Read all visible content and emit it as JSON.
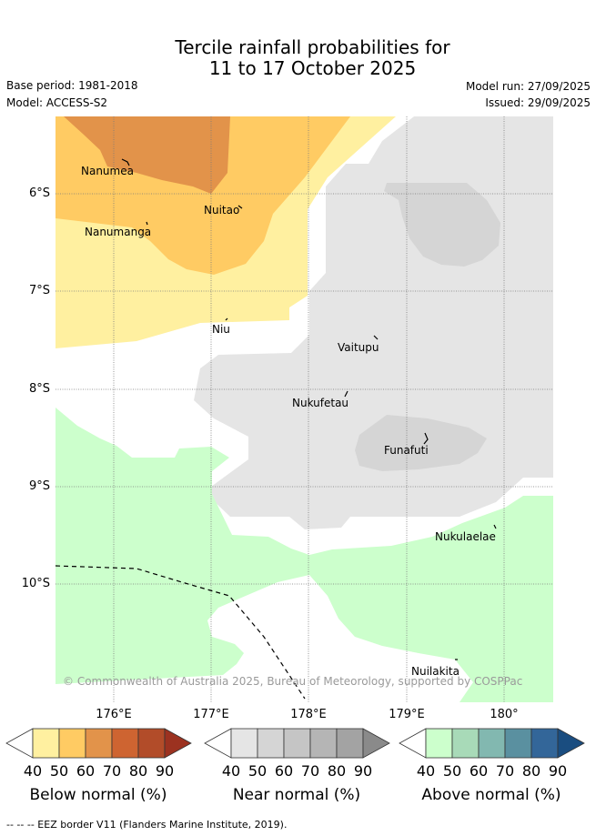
{
  "title": {
    "line1": "Tercile rainfall probabilities for",
    "line2": "11 to 17 October 2025"
  },
  "meta": {
    "base_period": "Base period: 1981-2018",
    "model": "Model: ACCESS-S2",
    "model_run": "Model run: 27/09/2025",
    "issued": "Issued: 29/09/2025"
  },
  "map": {
    "latitude_labels": [
      "6°S",
      "7°S",
      "8°S",
      "9°S",
      "10°S"
    ],
    "longitude_labels": [
      "176°E",
      "177°E",
      "178°E",
      "179°E",
      "180°"
    ],
    "islands": [
      "Nanumea",
      "Nuitao",
      "Nanumanga",
      "Niu",
      "Vaitupu",
      "Nukufetau",
      "Funafuti",
      "Nukulaelae",
      "Nuilakita"
    ],
    "copyright": "© Commonwealth of Australia 2025, Bureau of Meteorology, supported by COSPPac",
    "colors": {
      "below": [
        "#fff0a0",
        "#ffcb63",
        "#e2934a",
        "#ce6431",
        "#b24c29",
        "#9c3220"
      ],
      "near": [
        "#e5e5e5",
        "#d5d5d5",
        "#c5c5c5",
        "#b5b5b5",
        "#a3a3a3",
        "#8a8a8a"
      ],
      "above": [
        "#ccffcc",
        "#a8dab8",
        "#82b8b0",
        "#5a90a0",
        "#336699",
        "#1a4d80"
      ]
    }
  },
  "colorbars": {
    "ticks": [
      "40",
      "50",
      "60",
      "70",
      "80",
      "90"
    ],
    "below_title": "Below normal (%)",
    "near_title": "Near normal (%)",
    "above_title": "Above normal (%)"
  },
  "footer": "--  --  -- EEZ border V11 (Flanders Marine Institute, 2019)."
}
